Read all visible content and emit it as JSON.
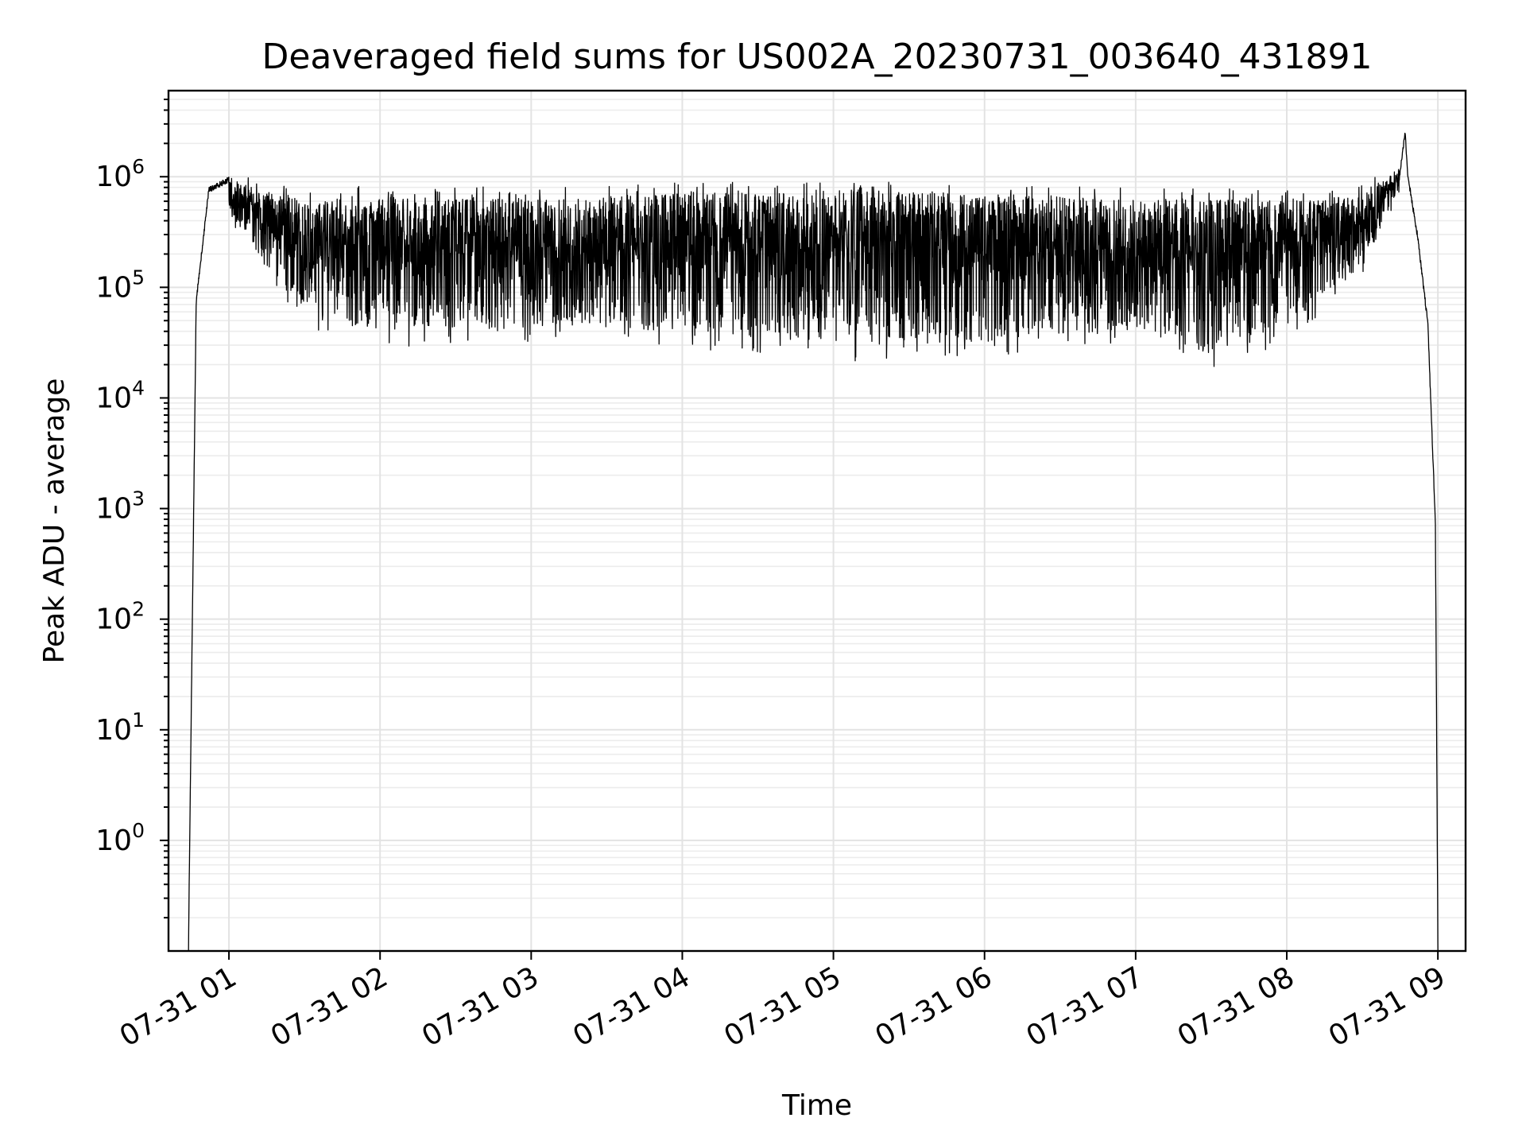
{
  "chart_data": {
    "type": "line",
    "title": "Deaveraged field sums for US002A_20230731_003640_431891",
    "xlabel": "Time",
    "ylabel": "Peak ADU - average",
    "yscale": "log",
    "ylim": [
      0.1,
      6000000
    ],
    "xlim": [
      "2023-07-31 00:36",
      "2023-07-31 09:11"
    ],
    "grid": true,
    "legend": "none",
    "line_color": "#000000",
    "x_ticks": [
      {
        "label": "07-31 01",
        "value": "2023-07-31 01:00"
      },
      {
        "label": "07-31 02",
        "value": "2023-07-31 02:00"
      },
      {
        "label": "07-31 03",
        "value": "2023-07-31 03:00"
      },
      {
        "label": "07-31 04",
        "value": "2023-07-31 04:00"
      },
      {
        "label": "07-31 05",
        "value": "2023-07-31 05:00"
      },
      {
        "label": "07-31 06",
        "value": "2023-07-31 06:00"
      },
      {
        "label": "07-31 07",
        "value": "2023-07-31 07:00"
      },
      {
        "label": "07-31 08",
        "value": "2023-07-31 08:00"
      },
      {
        "label": "07-31 09",
        "value": "2023-07-31 09:00"
      }
    ],
    "y_ticks": [
      {
        "base": "10",
        "exp": "0",
        "value": 1
      },
      {
        "base": "10",
        "exp": "1",
        "value": 10
      },
      {
        "base": "10",
        "exp": "2",
        "value": 100
      },
      {
        "base": "10",
        "exp": "3",
        "value": 1000
      },
      {
        "base": "10",
        "exp": "4",
        "value": 10000
      },
      {
        "base": "10",
        "exp": "5",
        "value": 100000
      },
      {
        "base": "10",
        "exp": "6",
        "value": 1000000
      }
    ],
    "series": [
      {
        "upper_envelope": [
          [
            "2023-07-31 00:44",
            0.15
          ],
          [
            "2023-07-31 00:45",
            13
          ],
          [
            "2023-07-31 00:47",
            80000
          ],
          [
            "2023-07-31 00:52",
            800000
          ],
          [
            "2023-07-31 01:00",
            1000000
          ],
          [
            "2023-07-31 01:15",
            700000
          ],
          [
            "2023-07-31 02:00",
            650000
          ],
          [
            "2023-07-31 03:00",
            650000
          ],
          [
            "2023-07-31 04:00",
            700000
          ],
          [
            "2023-07-31 05:00",
            750000
          ],
          [
            "2023-07-31 06:00",
            700000
          ],
          [
            "2023-07-31 07:00",
            650000
          ],
          [
            "2023-07-31 08:00",
            600000
          ],
          [
            "2023-07-31 08:30",
            700000
          ],
          [
            "2023-07-31 08:45",
            1200000
          ],
          [
            "2023-07-31 08:47",
            2700000
          ],
          [
            "2023-07-31 08:48",
            1100000
          ],
          [
            "2023-07-31 08:52",
            300000
          ],
          [
            "2023-07-31 08:56",
            50000
          ],
          [
            "2023-07-31 08:59",
            800
          ],
          [
            "2023-07-31 09:00",
            0.12
          ]
        ],
        "lower_envelope": [
          [
            "2023-07-31 01:00",
            500000
          ],
          [
            "2023-07-31 01:15",
            150000
          ],
          [
            "2023-07-31 01:30",
            60000
          ],
          [
            "2023-07-31 02:00",
            40000
          ],
          [
            "2023-07-31 03:00",
            45000
          ],
          [
            "2023-07-31 04:00",
            40000
          ],
          [
            "2023-07-31 05:00",
            30000
          ],
          [
            "2023-07-31 06:00",
            32000
          ],
          [
            "2023-07-31 07:00",
            40000
          ],
          [
            "2023-07-31 07:30",
            25000
          ],
          [
            "2023-07-31 08:00",
            45000
          ],
          [
            "2023-07-31 08:30",
            150000
          ],
          [
            "2023-07-31 08:45",
            700000
          ]
        ]
      }
    ]
  }
}
